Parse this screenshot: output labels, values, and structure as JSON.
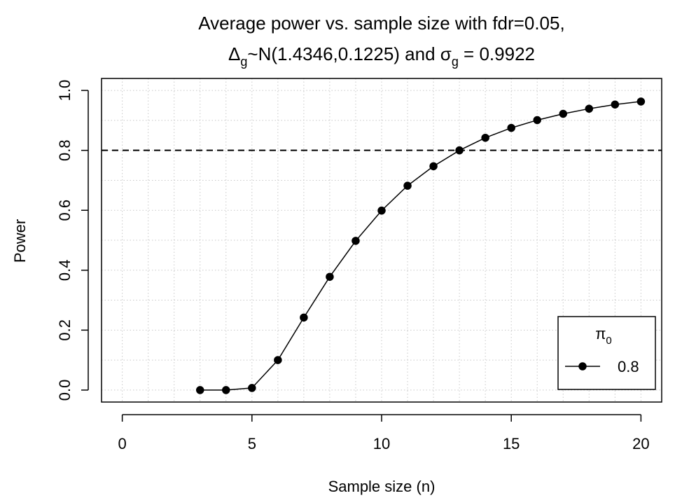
{
  "chart_data": {
    "type": "line",
    "title_line1": "Average power vs. sample size with fdr=0.05,",
    "title_line2": {
      "delta": "Δ",
      "delta_sub": "g",
      "dist": "~N(1.4346,0.1225) and ",
      "sigma": "σ",
      "sigma_sub": "g",
      "sigma_value": " = 0.9922"
    },
    "xlabel": "Sample size (n)",
    "ylabel": "Power",
    "xlim": [
      -0.8,
      20.8
    ],
    "ylim": [
      -0.04,
      1.04
    ],
    "x_ticks": [
      0,
      5,
      10,
      15,
      20
    ],
    "x_tick_labels": [
      "0",
      "5",
      "10",
      "15",
      "20"
    ],
    "y_ticks": [
      0.0,
      0.2,
      0.4,
      0.6,
      0.8,
      1.0
    ],
    "y_tick_labels": [
      "0.0",
      "0.2",
      "0.4",
      "0.6",
      "0.8",
      "1.0"
    ],
    "grid": true,
    "reference_line": {
      "y": 0.8,
      "style": "dashed"
    },
    "series": [
      {
        "name": "0.8",
        "x": [
          3,
          4,
          5,
          6,
          7,
          8,
          9,
          10,
          11,
          12,
          13,
          14,
          15,
          16,
          17,
          18,
          19,
          20
        ],
        "y": [
          0.0,
          0.0,
          0.007,
          0.1,
          0.242,
          0.378,
          0.498,
          0.599,
          0.682,
          0.747,
          0.8,
          0.842,
          0.875,
          0.901,
          0.922,
          0.939,
          0.953,
          0.963
        ],
        "color": "#000000"
      }
    ],
    "legend": {
      "placement": "bottom-right",
      "title_symbol": "π",
      "title_sub": "0",
      "entries": [
        "0.8"
      ]
    }
  }
}
